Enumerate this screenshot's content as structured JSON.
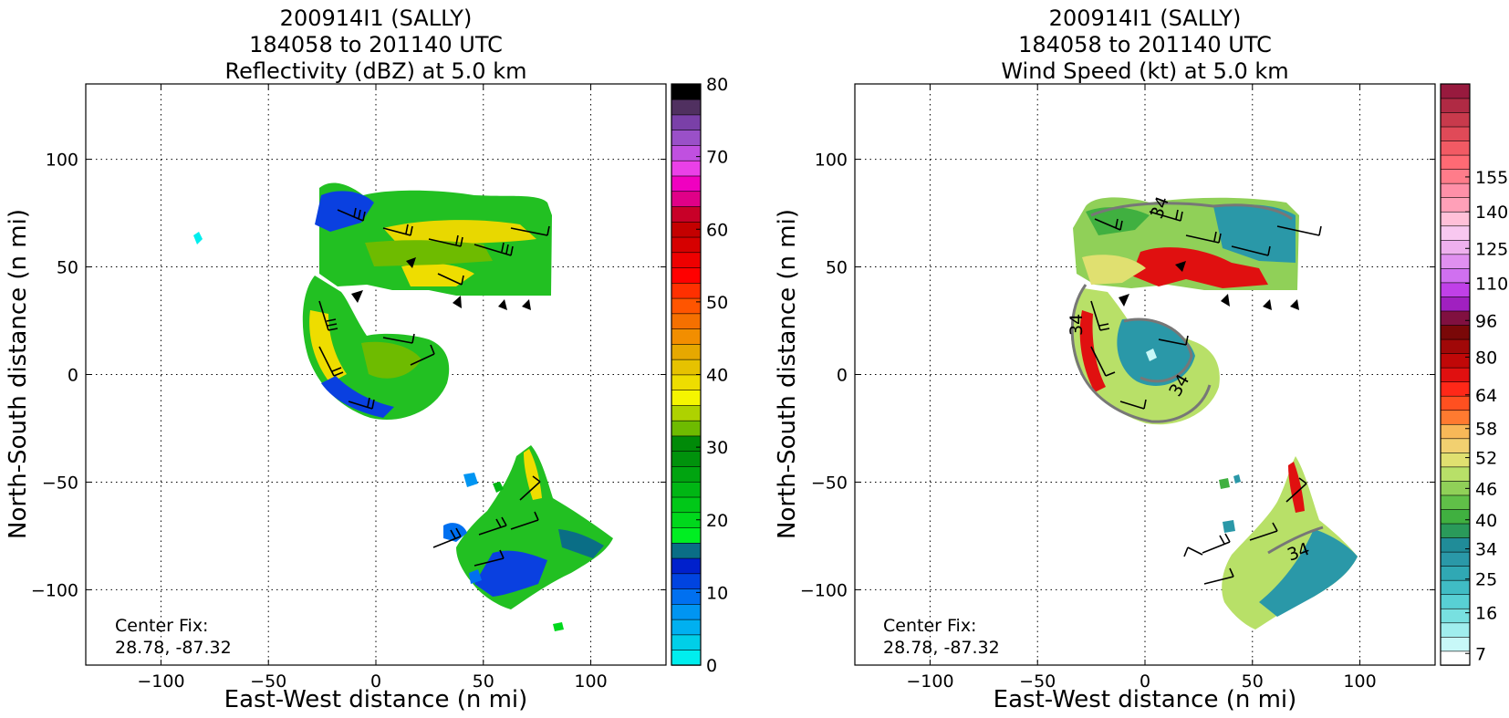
{
  "chart_data": [
    {
      "type": "heatmap",
      "title_lines": [
        "200914I1 (SALLY)",
        "184058 to 201140 UTC",
        "Reflectivity (dBZ) at 5.0 km"
      ],
      "xlabel": "East-West distance (n mi)",
      "ylabel": "North-South distance (n mi)",
      "xlim": [
        -135,
        135
      ],
      "ylim": [
        -135,
        135
      ],
      "xticks": [
        -100,
        -50,
        0,
        50,
        100
      ],
      "yticks": [
        -100,
        -50,
        0,
        50,
        100
      ],
      "xtick_labels": [
        "−100",
        "−50",
        "0",
        "50",
        "100"
      ],
      "ytick_labels": [
        "−100",
        "−50",
        "0",
        "50",
        "100"
      ],
      "grid": true,
      "annotation_lines": [
        "Center Fix:",
        "28.78, -87.32"
      ],
      "colorbar": {
        "ticks": [
          "0",
          "10",
          "20",
          "30",
          "40",
          "50",
          "60",
          "70",
          "80"
        ],
        "tick_fracs": [
          0,
          0.125,
          0.25,
          0.375,
          0.5,
          0.625,
          0.75,
          0.875,
          1
        ],
        "colors": [
          "#00eeee",
          "#00cfe8",
          "#00b0f0",
          "#0095f2",
          "#0070f0",
          "#0044e0",
          "#0020cc",
          "#0a6e86",
          "#00ee22",
          "#00d81c",
          "#00c818",
          "#00b614",
          "#00a410",
          "#00920c",
          "#008a08",
          "#6ebb00",
          "#aed200",
          "#f5f500",
          "#eedd00",
          "#e6c200",
          "#e6a800",
          "#f28e00",
          "#f57000",
          "#ff5500",
          "#ff3000",
          "#ff0000",
          "#ee0000",
          "#d60000",
          "#c40000",
          "#c80028",
          "#e00088",
          "#f000c0",
          "#ea40e8",
          "#c050e0",
          "#9a50c8",
          "#7a40a8",
          "#503060",
          "#000000"
        ]
      }
    },
    {
      "type": "heatmap",
      "title_lines": [
        "200914I1 (SALLY)",
        "184058 to 201140 UTC",
        "Wind Speed (kt) at 5.0 km"
      ],
      "xlabel": "East-West distance (n mi)",
      "ylabel": "North-South distance (n mi)",
      "xlim": [
        -135,
        135
      ],
      "ylim": [
        -135,
        135
      ],
      "xticks": [
        -100,
        -50,
        0,
        50,
        100
      ],
      "yticks": [
        -100,
        -50,
        0,
        50,
        100
      ],
      "xtick_labels": [
        "−100",
        "−50",
        "0",
        "50",
        "100"
      ],
      "ytick_labels": [
        "−100",
        "−50",
        "0",
        "50",
        "100"
      ],
      "grid": true,
      "contour_label": "34",
      "annotation_lines": [
        "Center Fix:",
        "28.78, -87.32"
      ],
      "colorbar": {
        "ticks": [
          "7",
          "16",
          "25",
          "34",
          "40",
          "46",
          "52",
          "58",
          "64",
          "80",
          "96",
          "110",
          "125",
          "140",
          "155"
        ],
        "tick_fracs": [
          0.02,
          0.09,
          0.148,
          0.2,
          0.25,
          0.304,
          0.357,
          0.407,
          0.465,
          0.53,
          0.593,
          0.657,
          0.717,
          0.78,
          0.84
        ],
        "colors": [
          "#ffffff",
          "#c8f8f8",
          "#a0eeee",
          "#78e0e0",
          "#58d0d4",
          "#40bcc4",
          "#30a8b4",
          "#2a98a8",
          "#208c98",
          "#2a9a5a",
          "#40b040",
          "#60c048",
          "#90d058",
          "#b8e068",
          "#e0e070",
          "#f2d070",
          "#f8b858",
          "#ff7a30",
          "#ff5020",
          "#ff2818",
          "#e01010",
          "#c00808",
          "#a00808",
          "#7a0808",
          "#801040",
          "#a020c0",
          "#c040e8",
          "#d070f0",
          "#e090f0",
          "#eeb0ee",
          "#f8c8f0",
          "#ffc0d8",
          "#ffa0b8",
          "#ff90a8",
          "#ff7c8a",
          "#ff6a74",
          "#f25a64",
          "#e04a58",
          "#c83a4c",
          "#b02a44",
          "#981a3e"
        ]
      }
    }
  ]
}
